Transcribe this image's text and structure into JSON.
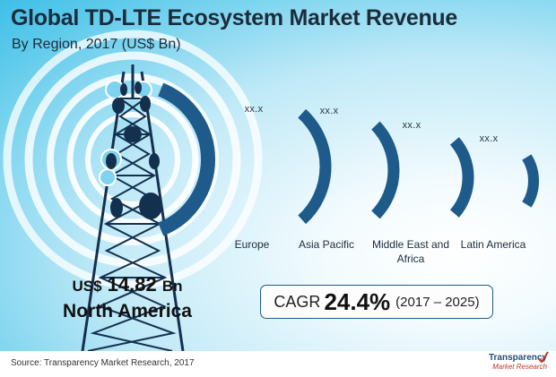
{
  "title": "Global TD-LTE Ecosystem Market Revenue",
  "subtitle": "By Region, 2017 (US$ Bn)",
  "chart_data": {
    "type": "bar",
    "categories": [
      "North America",
      "Europe",
      "Asia Pacific",
      "Middle East and Africa",
      "Latin America"
    ],
    "values": [
      14.82,
      null,
      null,
      null,
      null
    ],
    "data_labels": [
      "US$ 14.82 Bn",
      "xx.x",
      "xx.x",
      "xx.x",
      "xx.x"
    ],
    "relative_size": [
      1.0,
      0.76,
      0.64,
      0.52,
      0.34
    ]
  },
  "highlight": {
    "currency": "US$",
    "value": "14.82",
    "unit": "Bn",
    "region": "North America"
  },
  "regions": [
    {
      "label": "Europe",
      "value_label": "xx.x"
    },
    {
      "label": "Asia Pacific",
      "value_label": "xx.x"
    },
    {
      "label": "Middle East and Africa",
      "value_label": "xx.x"
    },
    {
      "label": "Latin America",
      "value_label": "xx.x"
    }
  ],
  "cagr": {
    "label": "CAGR",
    "value": "24.4%",
    "period": "(2017 – 2025)"
  },
  "source": "Source: Transparency Market Research, 2017",
  "logo": {
    "name": "Transparency",
    "sub": "Market Research"
  },
  "colors": {
    "arc": "#1e5a8a",
    "tower": "#14304f",
    "rings": "#ffffff",
    "highlight_ring": "#7fd3f0"
  }
}
